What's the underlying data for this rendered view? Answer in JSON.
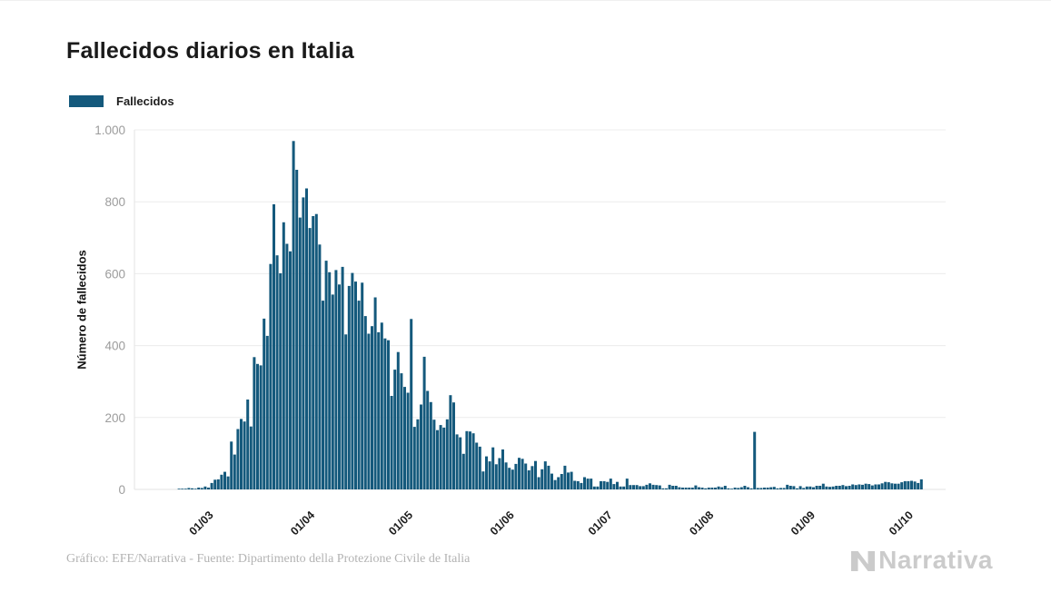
{
  "header": {
    "title": "Fallecidos diarios en Italia"
  },
  "legend": {
    "label": "Fallecidos",
    "swatch_color": "#14597c"
  },
  "footer": {
    "credit": "Gráfico: EFE/Narrativa - Fuente: Dipartimento della Protezione Civile de Italia",
    "brand": "Narrativa"
  },
  "chart_data": {
    "type": "bar",
    "title": "Fallecidos diarios en Italia",
    "series_name": "Fallecidos",
    "xlabel": "",
    "ylabel": "Número de fallecidos",
    "bar_color": "#14597c",
    "grid": true,
    "legend_position": "top-left",
    "ylim": [
      0,
      1000
    ],
    "y_ticks": [
      0,
      200,
      400,
      600,
      800,
      1000
    ],
    "y_tick_labels": [
      "0",
      "200",
      "400",
      "600",
      "800",
      "1.000"
    ],
    "x_tick_labels": [
      "01/03",
      "01/04",
      "01/05",
      "01/06",
      "01/07",
      "01/08",
      "01/09",
      "01/10"
    ],
    "x_tick_day_index": [
      9,
      40,
      70,
      101,
      131,
      162,
      193,
      223
    ],
    "start_date": "2020-02-21",
    "values": [
      1,
      1,
      1,
      4,
      3,
      2,
      5,
      4,
      8,
      5,
      18,
      27,
      28,
      41,
      49,
      36,
      133,
      97,
      168,
      196,
      189,
      250,
      175,
      368,
      349,
      345,
      475,
      427,
      627,
      793,
      651,
      601,
      743,
      683,
      662,
      969,
      889,
      756,
      812,
      837,
      727,
      760,
      766,
      681,
      525,
      636,
      604,
      542,
      610,
      570,
      619,
      431,
      566,
      602,
      578,
      525,
      575,
      482,
      433,
      454,
      534,
      437,
      464,
      420,
      415,
      260,
      333,
      382,
      323,
      285,
      269,
      474,
      174,
      195,
      236,
      369,
      274,
      243,
      194,
      165,
      179,
      172,
      195,
      262,
      242,
      153,
      145,
      99,
      162,
      161,
      156,
      130,
      119,
      50,
      92,
      78,
      117,
      70,
      87,
      111,
      75,
      60,
      55,
      71,
      88,
      85,
      72,
      53,
      65,
      79,
      34,
      56,
      78,
      66,
      44,
      26,
      34,
      43,
      66,
      47,
      49,
      24,
      23,
      18,
      34,
      30,
      30,
      8,
      8,
      23,
      23,
      21,
      30,
      15,
      21,
      8,
      8,
      30,
      12,
      12,
      12,
      9,
      9,
      13,
      17,
      13,
      12,
      11,
      3,
      3,
      13,
      10,
      10,
      6,
      5,
      5,
      5,
      5,
      11,
      6,
      5,
      3,
      5,
      5,
      5,
      8,
      6,
      10,
      3,
      2,
      5,
      4,
      6,
      10,
      6,
      3,
      160,
      4,
      4,
      5,
      5,
      6,
      7,
      3,
      4,
      4,
      13,
      10,
      9,
      3,
      9,
      4,
      8,
      8,
      6,
      10,
      10,
      16,
      8,
      7,
      8,
      10,
      10,
      12,
      9,
      10,
      14,
      12,
      14,
      13,
      16,
      15,
      11,
      14,
      14,
      17,
      21,
      20,
      17,
      16,
      16,
      20,
      23,
      23,
      24,
      22,
      18,
      28
    ]
  }
}
